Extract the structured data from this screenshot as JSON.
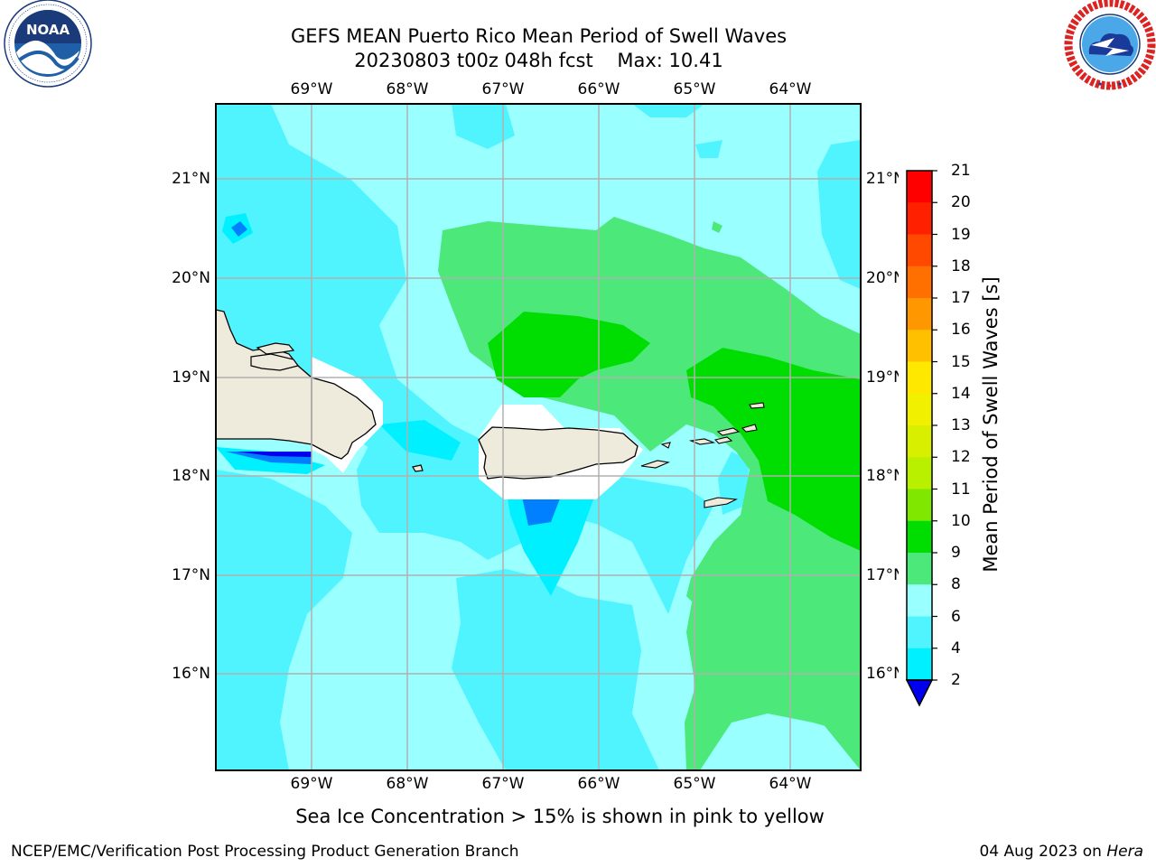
{
  "title": {
    "line1": "GEFS MEAN Puerto Rico Mean Period of Swell Waves",
    "line2": "20230803 t00z 048h fcst    Max: 10.41"
  },
  "map": {
    "lon_ticks": [
      "69°W",
      "68°W",
      "67°W",
      "66°W",
      "65°W",
      "64°W"
    ],
    "lat_ticks": [
      "21°N",
      "20°N",
      "19°N",
      "18°N",
      "17°N",
      "16°N"
    ]
  },
  "colorbar": {
    "label": "Mean Period of Swell Waves [s]",
    "levels": [
      "21",
      "20",
      "19",
      "18",
      "17",
      "16",
      "15",
      "14",
      "13",
      "12",
      "11",
      "10",
      "9",
      "8",
      "6",
      "4",
      "2"
    ],
    "colors": [
      "#ff0000",
      "#ff2000",
      "#ff4800",
      "#ff7000",
      "#ff9800",
      "#ffc000",
      "#ffe800",
      "#f0f000",
      "#d8f000",
      "#b8f000",
      "#80e800",
      "#00dd00",
      "#4ce87a",
      "#99ffff",
      "#4ff4ff",
      "#00f0ff",
      "#0080ff",
      "#0000ee"
    ]
  },
  "logos": {
    "noaa": {
      "text": "NOAA",
      "ring_text": "NATIONAL OCEANIC AND ATMOSPHERIC ADMINISTRATION · U.S. DEPARTMENT OF COMMERCE"
    },
    "nws": {
      "ring_text": "NATIONAL WEATHER SERVICE"
    }
  },
  "caption": "Sea Ice Concentration > 15% is shown in pink to yellow",
  "footer": {
    "left": "NCEP/EMC/Verification Post Processing Product Generation Branch",
    "right_prefix": "04 Aug 2023 on ",
    "right_italic": "Hera"
  }
}
